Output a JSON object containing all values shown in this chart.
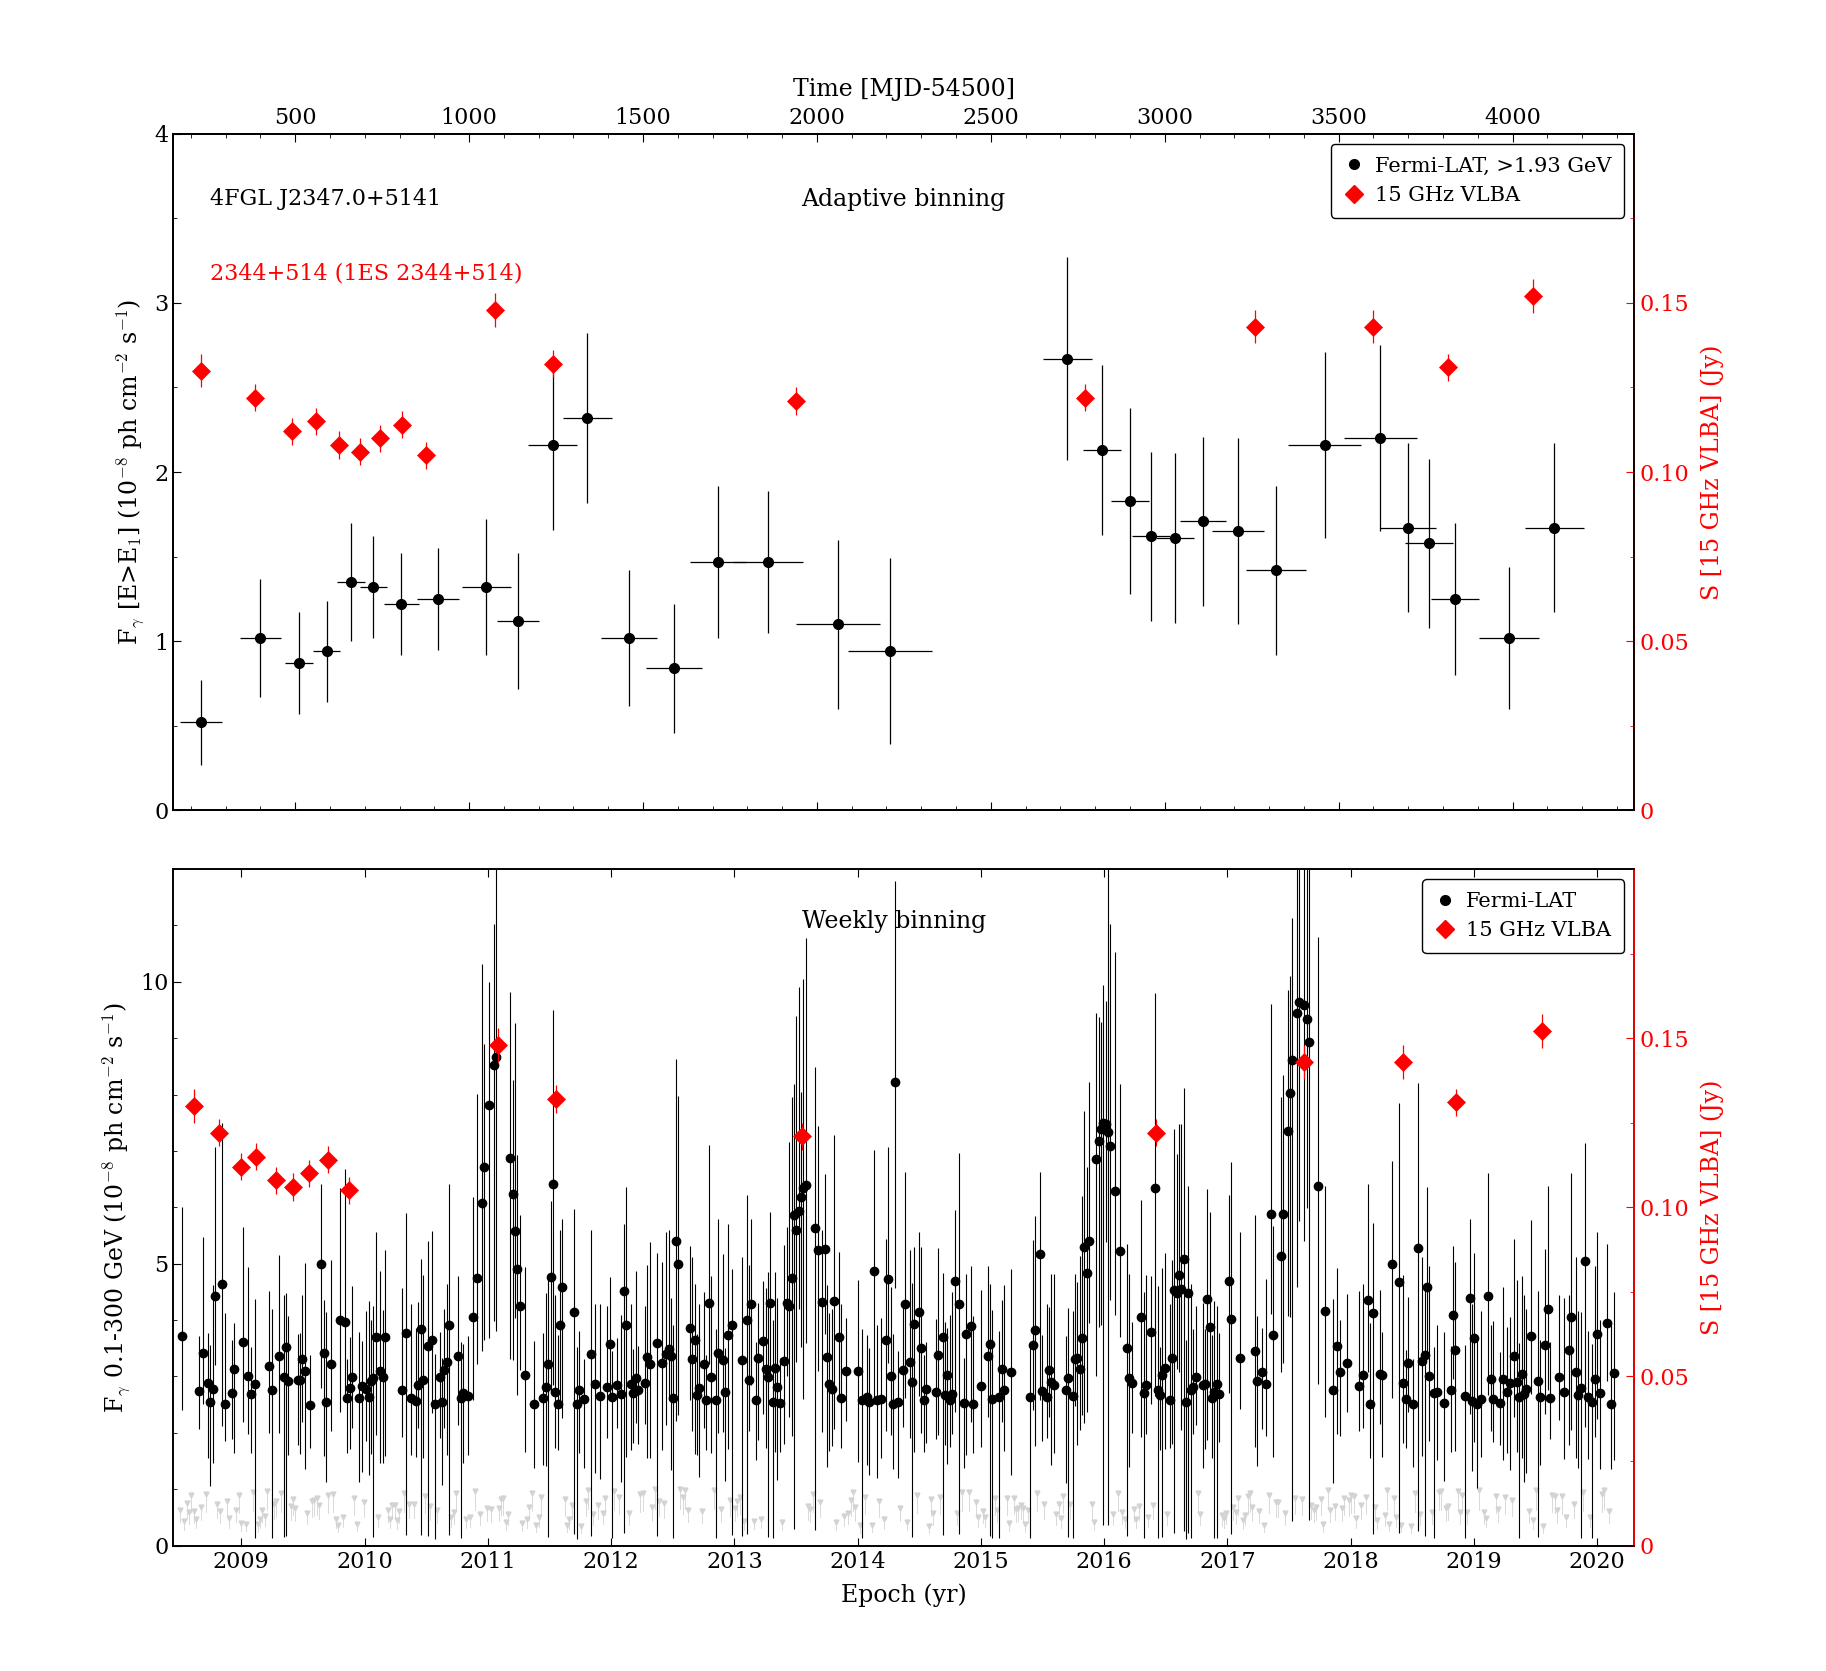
{
  "top_panel": {
    "label_source": "4FGL J2347.0+5141",
    "label_source2": "2344+514 (1ES 2344+514)",
    "title_text": "Adaptive binning",
    "ylabel_left": "F$_\\gamma$ [E>E$_1$] (10$^{-8}$ ph cm$^{-2}$ s$^{-1}$)",
    "ylabel_right": "S [15 GHz VLBA] (Jy)",
    "ylim_left": [
      0,
      4
    ],
    "ylim_right": [
      0,
      0.2
    ],
    "yticks_left": [
      0,
      1,
      2,
      3,
      4
    ],
    "yticks_right_vals": [
      0,
      0.05,
      0.1,
      0.15
    ],
    "yticks_right_labels": [
      "0",
      "0.05",
      "0.10",
      "0.15"
    ],
    "xlim_mjd": [
      150,
      4350
    ],
    "xticks_mjd": [
      500,
      1000,
      1500,
      2000,
      2500,
      3000,
      3500,
      4000
    ],
    "fermi_x": [
      230,
      400,
      510,
      590,
      660,
      725,
      805,
      910,
      1050,
      1140,
      1240,
      1340,
      1460,
      1590,
      1715,
      1860,
      2060,
      2210,
      2720,
      2820,
      2900,
      2960,
      3030,
      3110,
      3210,
      3320,
      3460,
      3620,
      3700,
      3760,
      3835,
      3990,
      4120
    ],
    "fermi_y": [
      0.52,
      1.02,
      0.87,
      0.94,
      1.35,
      1.32,
      1.22,
      1.25,
      1.32,
      1.12,
      2.16,
      2.32,
      1.02,
      0.84,
      1.47,
      1.47,
      1.1,
      0.94,
      2.67,
      2.13,
      1.83,
      1.62,
      1.61,
      1.71,
      1.65,
      1.42,
      2.16,
      2.2,
      1.67,
      1.58,
      1.25,
      1.02,
      1.67
    ],
    "fermi_xerr": [
      60,
      60,
      40,
      40,
      40,
      40,
      50,
      60,
      70,
      60,
      70,
      70,
      80,
      80,
      80,
      100,
      120,
      120,
      70,
      55,
      55,
      55,
      55,
      65,
      75,
      85,
      105,
      105,
      80,
      70,
      70,
      85,
      85
    ],
    "fermi_yerr": [
      0.25,
      0.35,
      0.3,
      0.3,
      0.35,
      0.3,
      0.3,
      0.3,
      0.4,
      0.4,
      0.5,
      0.5,
      0.4,
      0.38,
      0.45,
      0.42,
      0.5,
      0.55,
      0.6,
      0.5,
      0.55,
      0.5,
      0.5,
      0.5,
      0.55,
      0.5,
      0.55,
      0.55,
      0.5,
      0.5,
      0.45,
      0.42,
      0.5
    ],
    "vlba_x": [
      230,
      385,
      490,
      560,
      625,
      685,
      745,
      808,
      875,
      1075,
      1240,
      1940,
      2770,
      3260,
      3600,
      3815,
      4060
    ],
    "vlba_y_jy": [
      0.13,
      0.122,
      0.112,
      0.115,
      0.108,
      0.106,
      0.11,
      0.114,
      0.105,
      0.148,
      0.132,
      0.121,
      0.122,
      0.143,
      0.143,
      0.131,
      0.152
    ],
    "vlba_xerr": [
      15,
      15,
      15,
      15,
      15,
      15,
      15,
      15,
      15,
      15,
      15,
      15,
      15,
      15,
      15,
      15,
      15
    ],
    "vlba_yerr_jy": [
      0.005,
      0.004,
      0.004,
      0.004,
      0.004,
      0.004,
      0.004,
      0.004,
      0.004,
      0.005,
      0.004,
      0.004,
      0.004,
      0.005,
      0.005,
      0.004,
      0.005
    ]
  },
  "bottom_panel": {
    "title_text": "Weekly binning",
    "ylabel_left": "F$_\\gamma$ 0.1-300 GeV (10$^{-8}$ ph cm$^{-2}$ s$^{-1}$)",
    "ylabel_right": "S [15 GHz VLBA] (Jy)",
    "ylim_left": [
      0,
      12
    ],
    "ylim_right": [
      0,
      0.2
    ],
    "yticks_left": [
      0,
      5,
      10
    ],
    "yticks_right_vals": [
      0,
      0.05,
      0.1,
      0.15
    ],
    "yticks_right_labels": [
      "0",
      "0.05",
      "0.10",
      "0.15"
    ],
    "year_start": 2008.45,
    "year_end": 2020.3,
    "xticks_years": [
      2009,
      2010,
      2011,
      2012,
      2013,
      2014,
      2015,
      2016,
      2017,
      2018,
      2019,
      2020
    ],
    "xlabel": "Epoch (yr)",
    "vlba_x_yr": [
      2008.62,
      2008.82,
      2009.0,
      2009.12,
      2009.28,
      2009.42,
      2009.55,
      2009.7,
      2009.87,
      2011.08,
      2011.55,
      2013.55,
      2016.42,
      2017.62,
      2018.42,
      2018.85,
      2019.55
    ],
    "vlba_y_jy": [
      0.13,
      0.122,
      0.112,
      0.115,
      0.108,
      0.106,
      0.11,
      0.114,
      0.105,
      0.148,
      0.132,
      0.121,
      0.122,
      0.143,
      0.143,
      0.131,
      0.152
    ],
    "vlba_xerr_yr": [
      0.04,
      0.04,
      0.04,
      0.04,
      0.04,
      0.04,
      0.04,
      0.04,
      0.04,
      0.04,
      0.04,
      0.04,
      0.04,
      0.04,
      0.04,
      0.04,
      0.04
    ],
    "vlba_yerr_jy": [
      0.005,
      0.004,
      0.004,
      0.004,
      0.004,
      0.004,
      0.004,
      0.004,
      0.004,
      0.005,
      0.004,
      0.004,
      0.004,
      0.005,
      0.005,
      0.004,
      0.005
    ]
  },
  "top_xlabel": "Time [MJD-54500]",
  "fermi_color": "black",
  "vlba_color": "red",
  "fermi_marker": "o",
  "vlba_marker": "D",
  "marker_size": 7,
  "vlba_marker_size": 9,
  "font_size": 17,
  "tick_label_size": 16
}
